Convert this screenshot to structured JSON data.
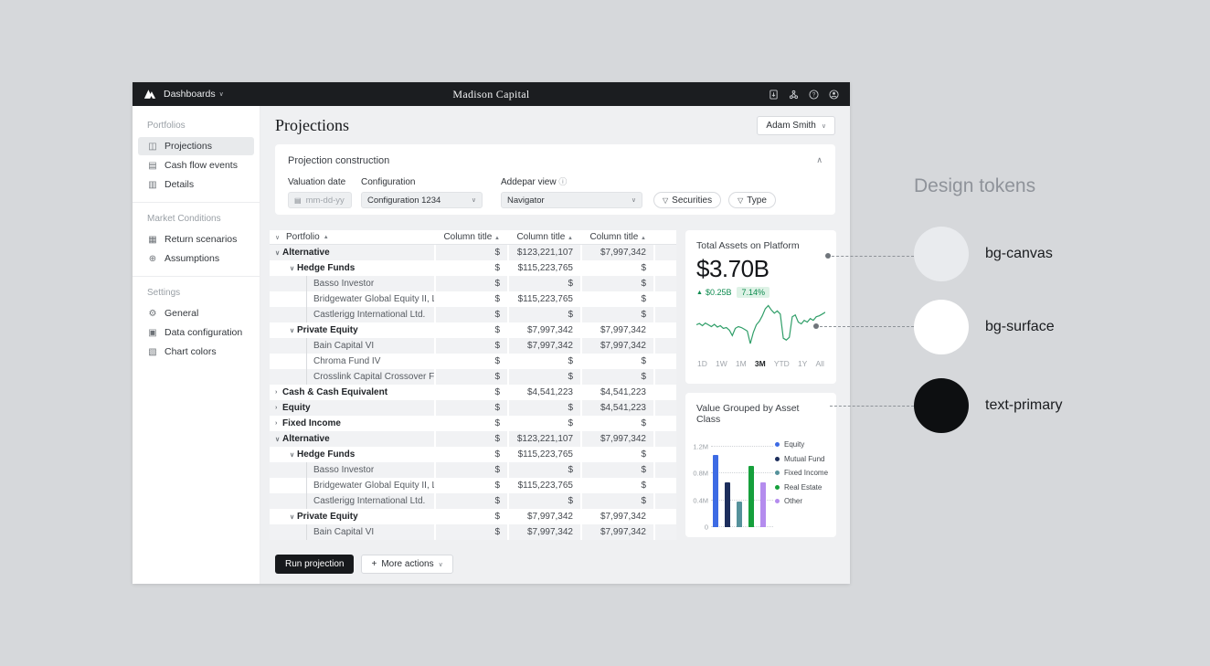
{
  "topbar": {
    "nav": "Dashboards",
    "brand": "Madison Capital"
  },
  "sidebar": {
    "sections": [
      {
        "label": "Portfolios",
        "items": [
          {
            "label": "Projections",
            "icon": "◫",
            "icon_name": "projections-icon",
            "active": true
          },
          {
            "label": "Cash flow events",
            "icon": "▤",
            "icon_name": "calendar-icon",
            "active": false
          },
          {
            "label": "Details",
            "icon": "▥",
            "icon_name": "details-icon",
            "active": false
          }
        ]
      },
      {
        "label": "Market Conditions",
        "items": [
          {
            "label": "Return scenarios",
            "icon": "▦",
            "icon_name": "table-icon",
            "active": false
          },
          {
            "label": "Assumptions",
            "icon": "⊕",
            "icon_name": "globe-icon",
            "active": false
          }
        ]
      },
      {
        "label": "Settings",
        "items": [
          {
            "label": "General",
            "icon": "⚙",
            "icon_name": "gear-icon",
            "active": false
          },
          {
            "label": "Data configuration",
            "icon": "▣",
            "icon_name": "data-config-icon",
            "active": false
          },
          {
            "label": "Chart colors",
            "icon": "▧",
            "icon_name": "chart-colors-icon",
            "active": false
          }
        ]
      }
    ]
  },
  "header": {
    "title": "Projections",
    "user": "Adam Smith"
  },
  "construction": {
    "title": "Projection construction",
    "valuation_label": "Valuation date",
    "valuation_placeholder": "mm-dd-yy",
    "configuration_label": "Configuration",
    "configuration_value": "Configuration 1234",
    "view_label": "Addepar view",
    "view_info_icon": "ⓘ",
    "view_value": "Navigator",
    "filters": [
      "Securities",
      "Type"
    ]
  },
  "table": {
    "name_header": "Portfolio",
    "column_headers": [
      "Column title",
      "Column title",
      "Column title"
    ],
    "rows": [
      {
        "label": "Alternative",
        "level": 1,
        "state": "expanded",
        "values": [
          "$",
          "$123,221,107",
          "$7,997,342"
        ]
      },
      {
        "label": "Hedge Funds",
        "level": 2,
        "state": "expanded",
        "values": [
          "$",
          "$115,223,765",
          "$"
        ]
      },
      {
        "label": "Basso Investor",
        "level": 3,
        "state": null,
        "values": [
          "$",
          "$",
          "$"
        ]
      },
      {
        "label": "Bridgewater Global Equity II, LP",
        "level": 3,
        "state": null,
        "values": [
          "$",
          "$115,223,765",
          "$"
        ]
      },
      {
        "label": "Castlerigg International Ltd.",
        "level": 3,
        "state": null,
        "values": [
          "$",
          "$",
          "$"
        ]
      },
      {
        "label": "Private Equity",
        "level": 2,
        "state": "expanded",
        "values": [
          "$",
          "$7,997,342",
          "$7,997,342"
        ]
      },
      {
        "label": "Bain Capital VI",
        "level": 3,
        "state": null,
        "values": [
          "$",
          "$7,997,342",
          "$7,997,342"
        ]
      },
      {
        "label": "Chroma Fund IV",
        "level": 3,
        "state": null,
        "values": [
          "$",
          "$",
          "$"
        ]
      },
      {
        "label": "Crosslink Capital Crossover Fund V",
        "level": 3,
        "state": null,
        "values": [
          "$",
          "$",
          "$"
        ]
      },
      {
        "label": "Cash & Cash Equivalent",
        "level": 1,
        "state": "collapsed",
        "values": [
          "$",
          "$4,541,223",
          "$4,541,223"
        ]
      },
      {
        "label": "Equity",
        "level": 1,
        "state": "collapsed",
        "values": [
          "$",
          "$",
          "$4,541,223"
        ]
      },
      {
        "label": "Fixed Income",
        "level": 1,
        "state": "collapsed",
        "values": [
          "$",
          "$",
          "$"
        ]
      },
      {
        "label": "Alternative",
        "level": 1,
        "state": "expanded",
        "values": [
          "$",
          "$123,221,107",
          "$7,997,342"
        ]
      },
      {
        "label": "Hedge Funds",
        "level": 2,
        "state": "expanded",
        "values": [
          "$",
          "$115,223,765",
          "$"
        ]
      },
      {
        "label": "Basso Investor",
        "level": 3,
        "state": null,
        "values": [
          "$",
          "$",
          "$"
        ]
      },
      {
        "label": "Bridgewater Global Equity II, LP",
        "level": 3,
        "state": null,
        "values": [
          "$",
          "$115,223,765",
          "$"
        ]
      },
      {
        "label": "Castlerigg International Ltd.",
        "level": 3,
        "state": null,
        "values": [
          "$",
          "$",
          "$"
        ]
      },
      {
        "label": "Private Equity",
        "level": 2,
        "state": "expanded",
        "values": [
          "$",
          "$7,997,342",
          "$7,997,342"
        ]
      },
      {
        "label": "Bain Capital VI",
        "level": 3,
        "state": null,
        "values": [
          "$",
          "$7,997,342",
          "$7,997,342"
        ]
      }
    ]
  },
  "actions": {
    "primary": "Run projection",
    "secondary": "More actions"
  },
  "chart_data": [
    {
      "type": "line",
      "title": "Total Assets on Platform",
      "value": "$3.70B",
      "change": "$0.25B",
      "change_direction": "up",
      "change_pct": "7.14%",
      "color": "#2f9e68",
      "ranges": [
        "1D",
        "1W",
        "1M",
        "3M",
        "YTD",
        "1Y",
        "All"
      ],
      "active_range": "3M",
      "points": [
        52,
        55,
        50,
        56,
        52,
        48,
        53,
        47,
        50,
        44,
        46,
        40,
        28,
        44,
        48,
        46,
        42,
        38,
        10,
        35,
        52,
        60,
        72,
        88,
        95,
        85,
        78,
        83,
        76,
        22,
        18,
        24,
        70,
        74,
        58,
        54,
        62,
        58,
        66,
        62,
        70,
        72,
        76,
        80
      ]
    },
    {
      "type": "bar",
      "title": "Value Grouped by Asset Class",
      "categories": [
        "Equity",
        "Mutual Fund",
        "Fixed Income",
        "Real Estate",
        "Other"
      ],
      "values": [
        1.08,
        0.67,
        0.38,
        0.92,
        0.67
      ],
      "colors": [
        "#3d6be4",
        "#1d2e5c",
        "#55919b",
        "#16a03c",
        "#b48cee"
      ],
      "unit": "M",
      "ylim": [
        0,
        1.2
      ],
      "yticks": [
        {
          "label": "1.2M",
          "value": 1.2
        },
        {
          "label": "0.8M",
          "value": 0.8
        },
        {
          "label": "0.4M",
          "value": 0.4
        },
        {
          "label": "0",
          "value": 0
        }
      ],
      "legend_position": "right",
      "grid": "dotted"
    }
  ],
  "tokens": {
    "title": "Design tokens",
    "items": [
      {
        "name": "bg-canvas",
        "color": "#e9ebee"
      },
      {
        "name": "bg-surface",
        "color": "#ffffff"
      },
      {
        "name": "text-primary",
        "color": "#0d0f11"
      }
    ]
  }
}
